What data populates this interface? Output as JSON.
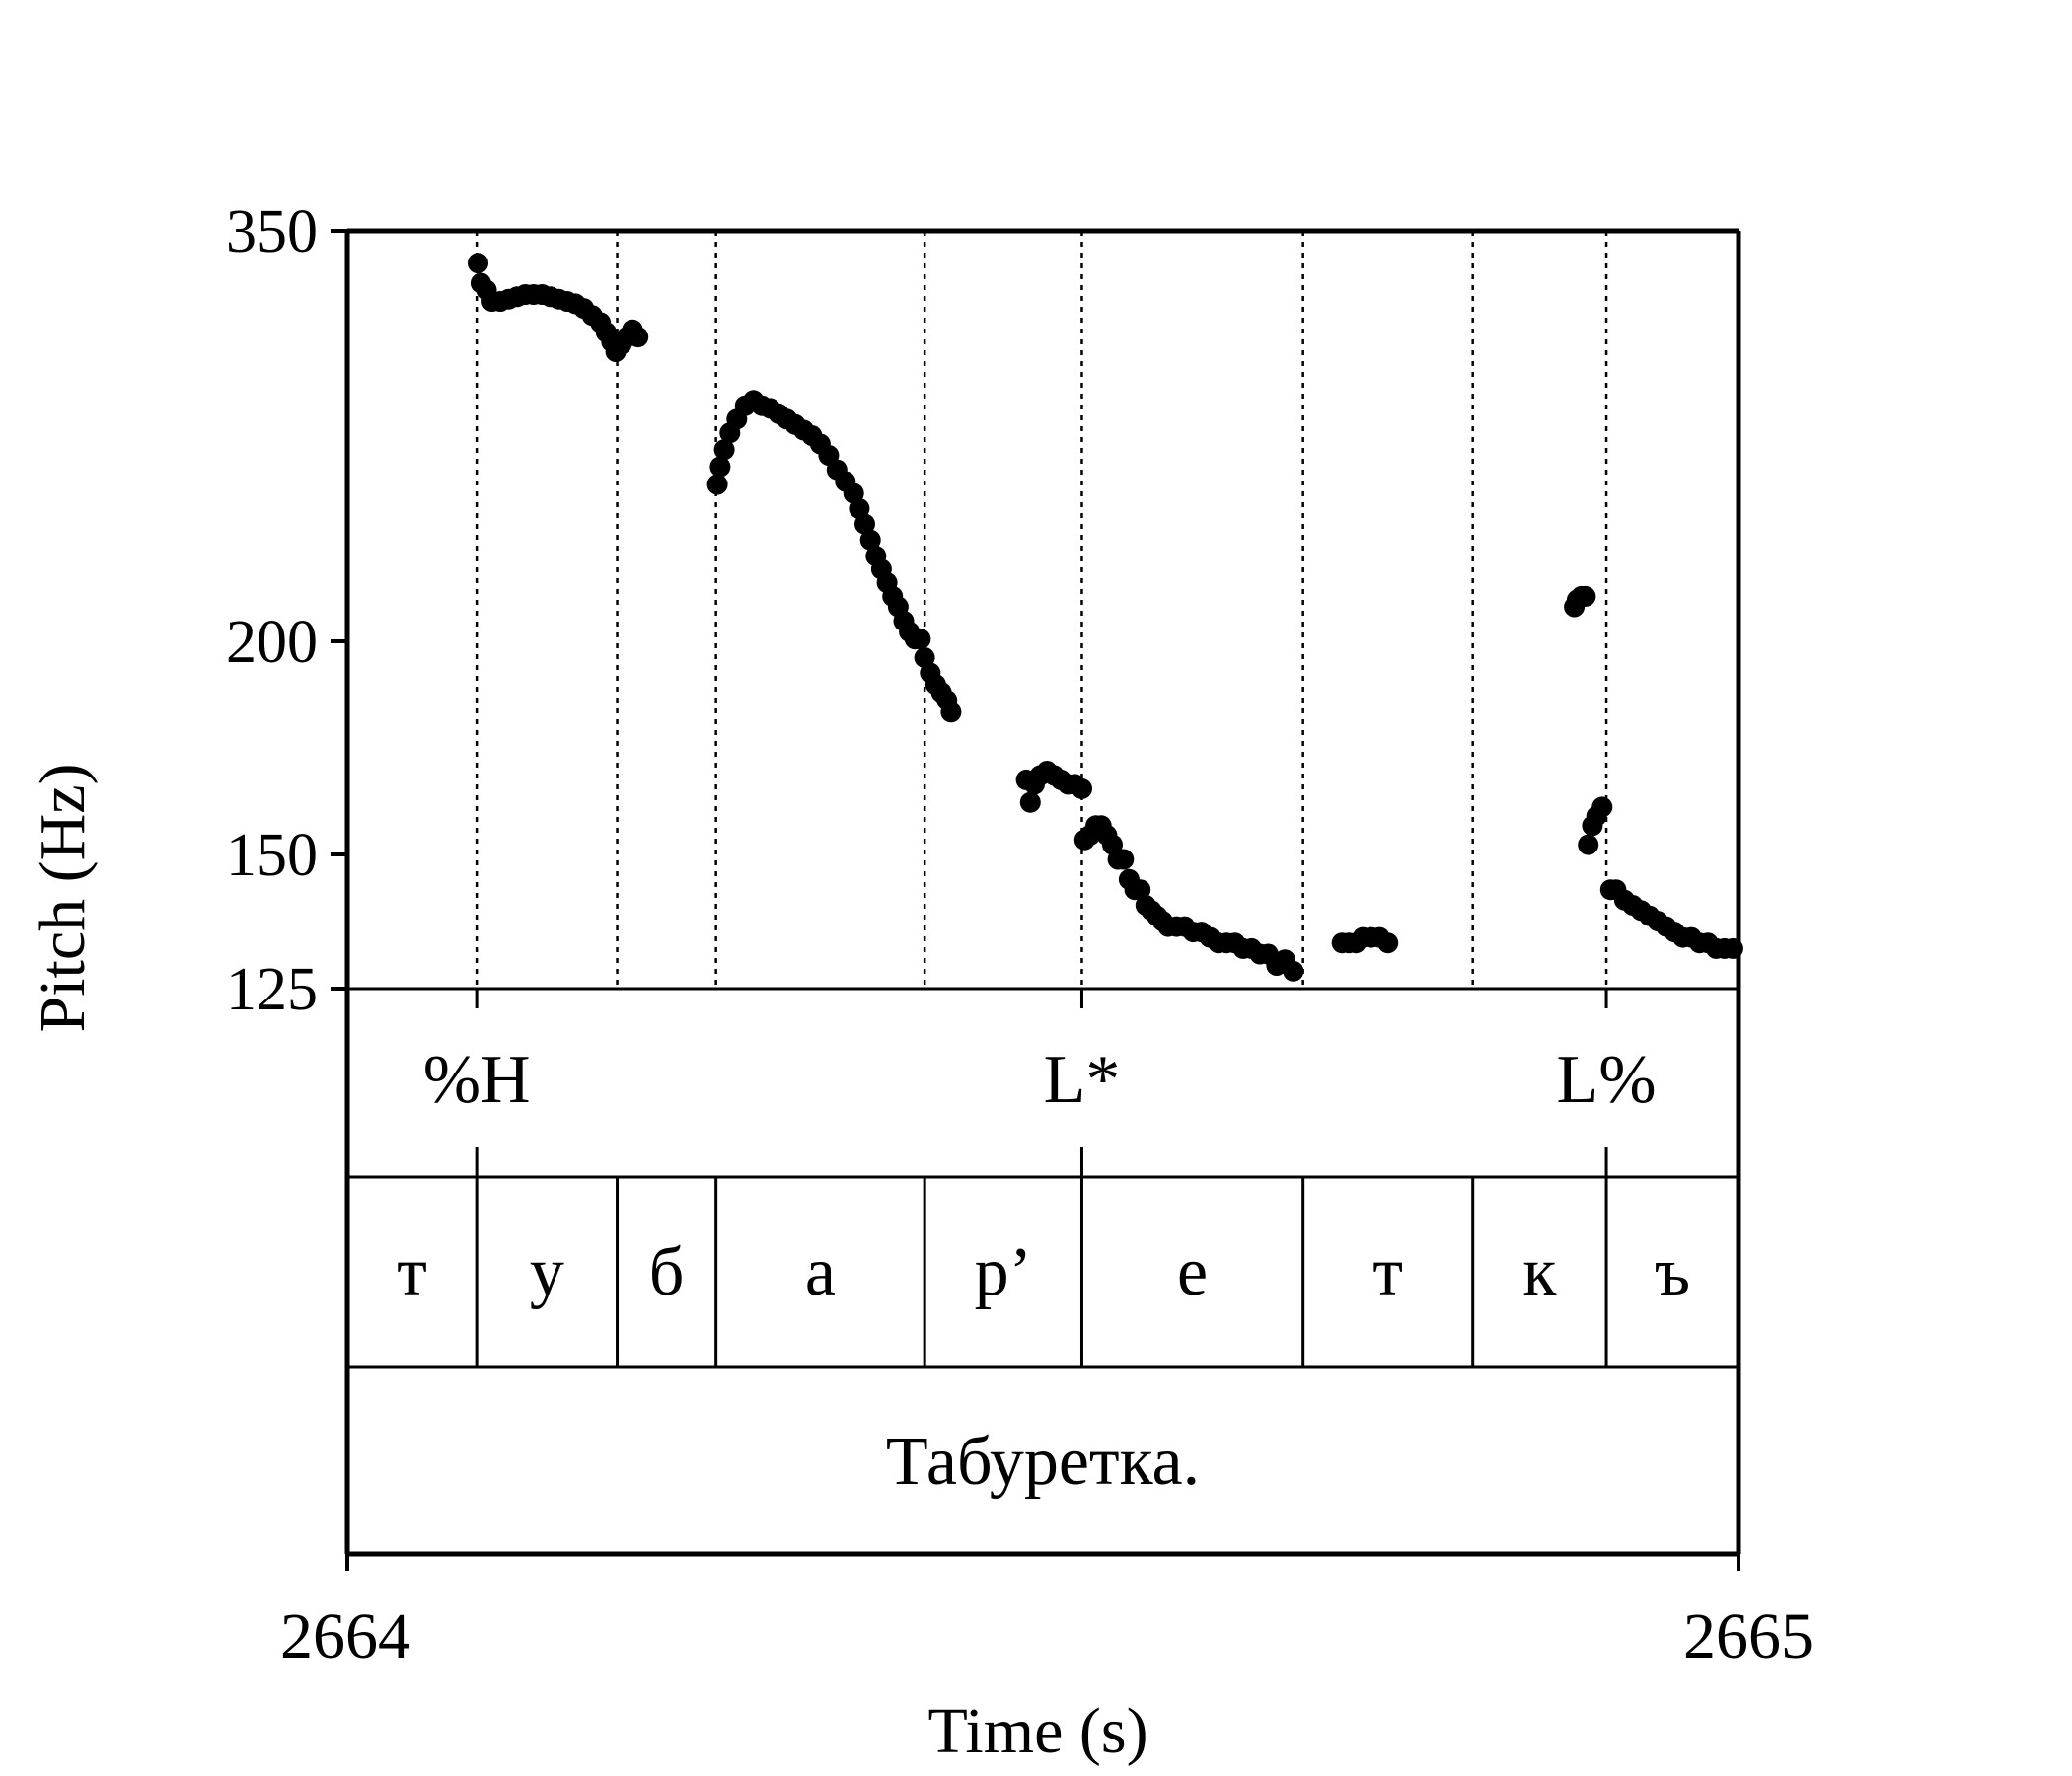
{
  "chart_data": {
    "type": "scatter",
    "ylabel": "Pitch (Hz)",
    "xlabel": "Time (s)",
    "x_ticks": [
      "2664",
      "2665"
    ],
    "xlim": [
      2664,
      2665
    ],
    "y_ticks": [
      "350",
      "200",
      "150",
      "125"
    ],
    "ylim": [
      125,
      350
    ],
    "y_scale": "log",
    "grid": false,
    "legend": "none",
    "point_color": "#000000",
    "boundaries": [
      2664.093,
      2664.194,
      2664.265,
      2664.415,
      2664.528,
      2664.687,
      2664.809,
      2664.905
    ],
    "tones": [
      {
        "label": "%H",
        "time": 2664.093
      },
      {
        "label": "L*",
        "time": 2664.528
      },
      {
        "label": "L%",
        "time": 2664.905
      }
    ],
    "segments": [
      {
        "label": "т",
        "start": 2664.0,
        "end": 2664.093
      },
      {
        "label": "у",
        "start": 2664.093,
        "end": 2664.194
      },
      {
        "label": "б",
        "start": 2664.194,
        "end": 2664.265
      },
      {
        "label": "а",
        "start": 2664.265,
        "end": 2664.415
      },
      {
        "label": "р’",
        "start": 2664.415,
        "end": 2664.528
      },
      {
        "label": "е",
        "start": 2664.528,
        "end": 2664.687
      },
      {
        "label": "т",
        "start": 2664.687,
        "end": 2664.809
      },
      {
        "label": "к",
        "start": 2664.809,
        "end": 2664.905
      },
      {
        "label": "ъ",
        "start": 2664.905,
        "end": 2665.0
      }
    ],
    "word": {
      "label": "Табуретка.",
      "start": 2664.0,
      "end": 2665.0
    },
    "series": [
      {
        "points": [
          [
            2664.094,
            335
          ],
          [
            2664.096,
            326
          ],
          [
            2664.1,
            323
          ],
          [
            2664.104,
            318
          ],
          [
            2664.11,
            318
          ],
          [
            2664.116,
            319
          ],
          [
            2664.122,
            320
          ],
          [
            2664.128,
            321
          ],
          [
            2664.134,
            321
          ],
          [
            2664.14,
            321
          ],
          [
            2664.146,
            320
          ],
          [
            2664.152,
            319
          ],
          [
            2664.158,
            318
          ],
          [
            2664.164,
            317
          ],
          [
            2664.17,
            315
          ],
          [
            2664.176,
            312
          ],
          [
            2664.182,
            309
          ],
          [
            2664.186,
            305
          ],
          [
            2664.19,
            301
          ],
          [
            2664.193,
            297
          ],
          [
            2664.197,
            300
          ],
          [
            2664.201,
            303
          ],
          [
            2664.205,
            306
          ],
          [
            2664.209,
            303
          ]
        ]
      },
      {
        "points": [
          [
            2664.266,
            248
          ],
          [
            2664.268,
            254
          ],
          [
            2664.271,
            260
          ],
          [
            2664.275,
            266
          ],
          [
            2664.28,
            271
          ],
          [
            2664.286,
            276
          ],
          [
            2664.292,
            278
          ],
          [
            2664.298,
            276
          ],
          [
            2664.304,
            275
          ],
          [
            2664.31,
            273
          ],
          [
            2664.316,
            271
          ],
          [
            2664.322,
            269
          ],
          [
            2664.328,
            267
          ],
          [
            2664.334,
            265
          ],
          [
            2664.34,
            262
          ],
          [
            2664.346,
            258
          ],
          [
            2664.352,
            253
          ],
          [
            2664.358,
            249
          ],
          [
            2664.364,
            245
          ],
          [
            2664.368,
            240
          ],
          [
            2664.372,
            235
          ],
          [
            2664.376,
            230
          ],
          [
            2664.38,
            225
          ],
          [
            2664.384,
            221
          ],
          [
            2664.388,
            217
          ],
          [
            2664.392,
            213
          ],
          [
            2664.396,
            210
          ],
          [
            2664.4,
            206
          ],
          [
            2664.404,
            203
          ],
          [
            2664.408,
            201
          ],
          [
            2664.412,
            201
          ],
          [
            2664.415,
            196
          ],
          [
            2664.419,
            192
          ],
          [
            2664.423,
            189
          ],
          [
            2664.427,
            187
          ],
          [
            2664.431,
            185
          ],
          [
            2664.434,
            182
          ]
        ]
      },
      {
        "points": [
          [
            2664.488,
            166
          ],
          [
            2664.491,
            161
          ],
          [
            2664.494,
            165
          ],
          [
            2664.498,
            167
          ],
          [
            2664.503,
            168
          ],
          [
            2664.508,
            167
          ],
          [
            2664.513,
            166
          ],
          [
            2664.518,
            165
          ],
          [
            2664.523,
            165
          ],
          [
            2664.528,
            164
          ],
          [
            2664.53,
            153
          ],
          [
            2664.534,
            154
          ],
          [
            2664.538,
            156
          ],
          [
            2664.542,
            156
          ],
          [
            2664.546,
            154
          ],
          [
            2664.55,
            152
          ],
          [
            2664.554,
            149
          ],
          [
            2664.558,
            149
          ],
          [
            2664.562,
            145
          ],
          [
            2664.566,
            143
          ],
          [
            2664.57,
            143
          ],
          [
            2664.574,
            140
          ],
          [
            2664.578,
            139
          ],
          [
            2664.582,
            138
          ],
          [
            2664.586,
            137
          ],
          [
            2664.59,
            136
          ],
          [
            2664.596,
            136
          ],
          [
            2664.602,
            136
          ],
          [
            2664.608,
            135
          ],
          [
            2664.614,
            135
          ],
          [
            2664.62,
            134
          ],
          [
            2664.626,
            133
          ],
          [
            2664.632,
            133
          ],
          [
            2664.638,
            133
          ],
          [
            2664.644,
            132
          ],
          [
            2664.65,
            132
          ],
          [
            2664.656,
            131
          ],
          [
            2664.662,
            131
          ],
          [
            2664.668,
            129
          ],
          [
            2664.674,
            130
          ],
          [
            2664.68,
            128
          ]
        ]
      },
      {
        "points": [
          [
            2664.715,
            133
          ],
          [
            2664.72,
            133
          ],
          [
            2664.725,
            133
          ],
          [
            2664.73,
            134
          ],
          [
            2664.736,
            134
          ],
          [
            2664.742,
            134
          ],
          [
            2664.748,
            133
          ]
        ]
      },
      {
        "points": [
          [
            2664.882,
            210
          ],
          [
            2664.884,
            212
          ],
          [
            2664.887,
            213
          ],
          [
            2664.89,
            213
          ],
          [
            2664.892,
            152
          ],
          [
            2664.895,
            156
          ],
          [
            2664.898,
            158
          ],
          [
            2664.902,
            160
          ],
          [
            2664.908,
            143
          ],
          [
            2664.912,
            143
          ],
          [
            2664.918,
            141
          ],
          [
            2664.924,
            140
          ],
          [
            2664.93,
            139
          ],
          [
            2664.936,
            138
          ],
          [
            2664.942,
            137
          ],
          [
            2664.948,
            136
          ],
          [
            2664.954,
            135
          ],
          [
            2664.96,
            134
          ],
          [
            2664.966,
            134
          ],
          [
            2664.972,
            133
          ],
          [
            2664.978,
            133
          ],
          [
            2664.984,
            132
          ],
          [
            2664.99,
            132
          ],
          [
            2664.996,
            132
          ]
        ]
      }
    ]
  }
}
